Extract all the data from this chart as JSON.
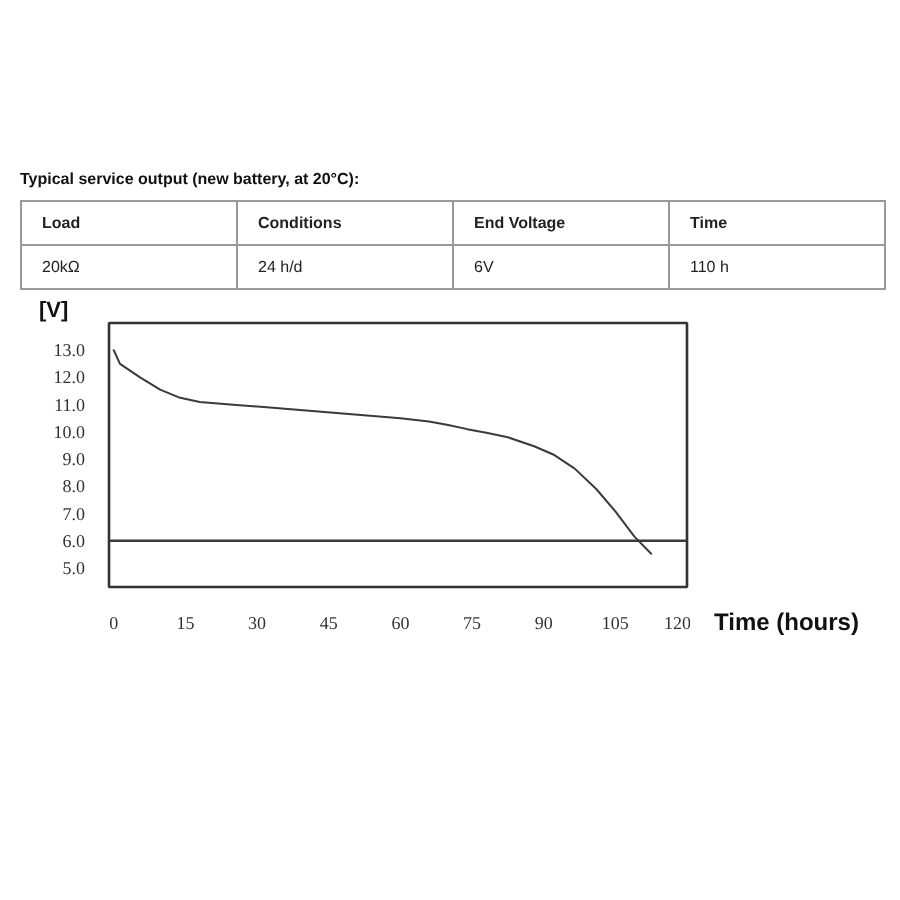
{
  "chart_data": {
    "type": "line",
    "title": "Typical service output (new battery, at 20°C):",
    "annotations": [
      "Load",
      "Conditions",
      "End Voltage",
      "Time",
      "20kΩ",
      "24 h/d",
      "6V",
      "110 h"
    ],
    "xlabel": "Time (hours)",
    "ylabel": "[V]",
    "xlim": [
      -1,
      120
    ],
    "ylim": [
      4.3,
      14
    ],
    "xticks": [
      0,
      15,
      30,
      45,
      60,
      75,
      90,
      105,
      120
    ],
    "yticks": [
      {
        "value": 5,
        "label": "5.0"
      },
      {
        "value": 6,
        "label": "6.0"
      },
      {
        "value": 7,
        "label": "7.0"
      },
      {
        "value": 8,
        "label": "8.0"
      },
      {
        "value": 9,
        "label": "9.0"
      },
      {
        "value": 10,
        "label": "10.0"
      },
      {
        "value": 11,
        "label": "11.0"
      },
      {
        "value": 12,
        "label": "12.0"
      },
      {
        "value": 13,
        "label": "13.0"
      }
    ],
    "x": [
      0,
      1.3,
      5.5,
      9.7,
      13.9,
      18,
      25,
      32,
      39,
      46,
      53,
      60,
      66,
      70,
      74,
      78,
      82.5,
      88,
      92,
      96.5,
      101,
      105,
      109,
      112.5
    ],
    "values": [
      13.0,
      12.5,
      12.0,
      11.55,
      11.25,
      11.1,
      11.0,
      10.9,
      10.8,
      10.7,
      10.6,
      10.5,
      10.38,
      10.25,
      10.1,
      9.97,
      9.8,
      9.47,
      9.17,
      8.65,
      7.9,
      7.08,
      6.15,
      5.52
    ],
    "color": "#3a3a3a",
    "ref_lines": [
      {
        "axis": "y",
        "value": 6,
        "color": "#3a3a3a"
      }
    ],
    "grid": false,
    "marker": "none",
    "line_style": "solid"
  }
}
